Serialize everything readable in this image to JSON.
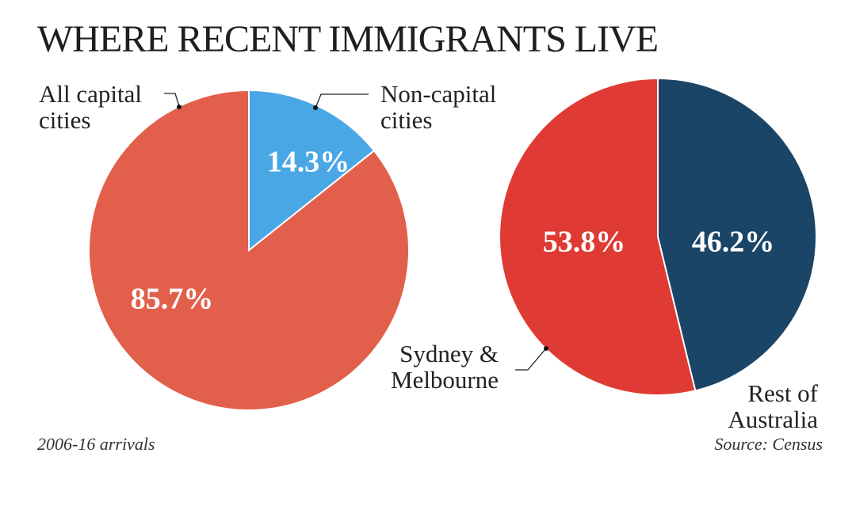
{
  "title": "WHERE RECENT IMMIGRANTS LIVE",
  "footnote_left": "2006-16 arrivals",
  "footnote_right": "Source: Census",
  "chart_data": [
    {
      "type": "pie",
      "slices": [
        {
          "label": "Non-capital cities",
          "label_lines": [
            "Non-capital",
            "cities"
          ],
          "value": 14.3,
          "display": "14.3%",
          "color": "#4aa7e6"
        },
        {
          "label": "All capital cities",
          "label_lines": [
            "All capital",
            "cities"
          ],
          "value": 85.7,
          "display": "85.7%",
          "color": "#e2604b"
        }
      ]
    },
    {
      "type": "pie",
      "slices": [
        {
          "label": "Rest of Australia",
          "label_lines": [
            "Rest of",
            "Australia"
          ],
          "value": 46.2,
          "display": "46.2%",
          "color": "#1b4566"
        },
        {
          "label": "Sydney & Melbourne",
          "label_lines": [
            "Sydney &",
            "Melbourne"
          ],
          "value": 53.8,
          "display": "53.8%",
          "color": "#df3a33"
        }
      ]
    }
  ]
}
